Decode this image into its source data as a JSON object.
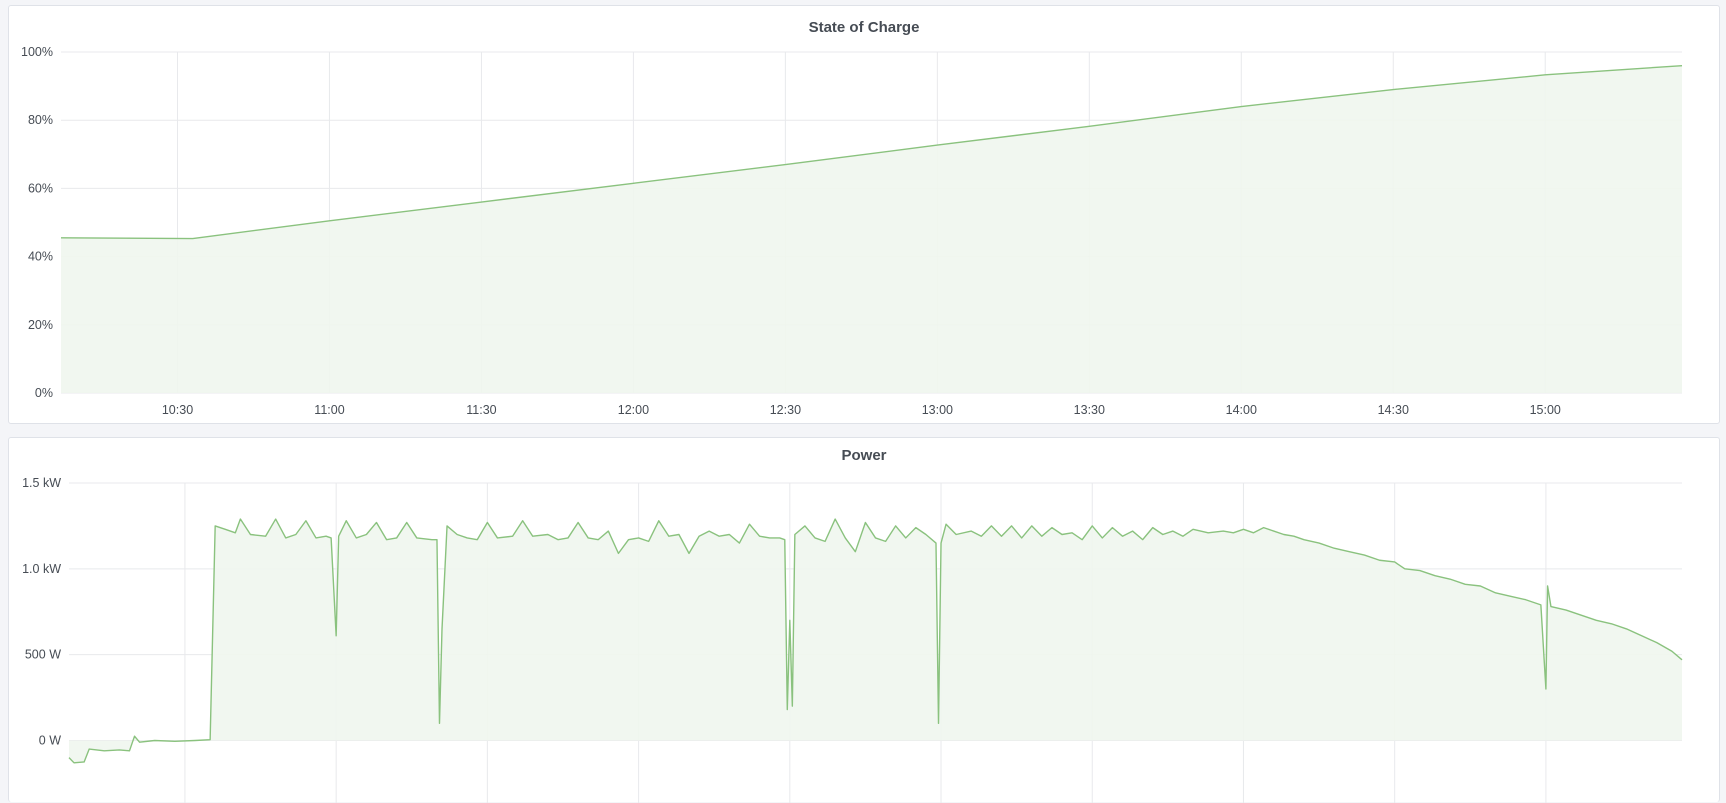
{
  "colors": {
    "line": "#8ac27e",
    "fill": "#f0f6ee",
    "grid": "#e8e9ec",
    "background": "#f4f5f8"
  },
  "chart_data": [
    {
      "type": "area",
      "title": "State of Charge",
      "xlabel": "",
      "ylabel": "",
      "xlim": [
        "10:07",
        "15:27"
      ],
      "ylim": [
        0,
        100
      ],
      "x_ticks": [
        "10:30",
        "11:00",
        "11:30",
        "12:00",
        "12:30",
        "13:00",
        "13:30",
        "14:00",
        "14:30",
        "15:00"
      ],
      "y_ticks": [
        {
          "value": 0,
          "label": "0%"
        },
        {
          "value": 20,
          "label": "20%"
        },
        {
          "value": 40,
          "label": "40%"
        },
        {
          "value": 60,
          "label": "60%"
        },
        {
          "value": 80,
          "label": "80%"
        },
        {
          "value": 100,
          "label": "100%"
        }
      ],
      "grid": true,
      "x": [
        "10:07",
        "10:33",
        "11:00",
        "11:30",
        "12:00",
        "12:30",
        "13:00",
        "13:30",
        "14:00",
        "14:30",
        "15:00",
        "15:27"
      ],
      "y": [
        45.5,
        45.3,
        50.5,
        56,
        61.5,
        67,
        72.7,
        78.2,
        84,
        89,
        93.3,
        96
      ]
    },
    {
      "type": "area",
      "title": "Power",
      "xlabel": "",
      "ylabel": "",
      "xlim": [
        "10:07",
        "15:27"
      ],
      "ylim": [
        -300,
        1500
      ],
      "x_grid": [
        "10:30",
        "11:00",
        "11:30",
        "12:00",
        "12:30",
        "13:00",
        "13:30",
        "14:00",
        "14:30",
        "15:00"
      ],
      "y_ticks": [
        {
          "value": 0,
          "label": "0 W"
        },
        {
          "value": 500,
          "label": "500 W"
        },
        {
          "value": 1000,
          "label": "1.0 kW"
        },
        {
          "value": 1500,
          "label": "1.5 kW"
        }
      ],
      "grid": true,
      "x": [
        "10:07",
        "10:08",
        "10:10",
        "10:11",
        "10:14",
        "10:17",
        "10:19",
        "10:20",
        "10:21",
        "10:24",
        "10:28",
        "10:32",
        "10:35",
        "10:36",
        "10:38",
        "10:40",
        "10:41",
        "10:43",
        "10:46",
        "10:48",
        "10:50",
        "10:52",
        "10:54",
        "10:56",
        "10:58",
        "10:59",
        "11:00",
        "11:00:30",
        "11:02",
        "11:04",
        "11:06",
        "11:08",
        "11:10",
        "11:12",
        "11:14",
        "11:16",
        "11:19",
        "11:20",
        "11:20:30",
        "11:21",
        "11:22",
        "11:24",
        "11:26",
        "11:28",
        "11:30",
        "11:32",
        "11:35",
        "11:37",
        "11:39",
        "11:42",
        "11:44",
        "11:46",
        "11:48",
        "11:50",
        "11:52",
        "11:54",
        "11:56",
        "11:58",
        "12:00",
        "12:02",
        "12:04",
        "12:06",
        "12:08",
        "12:10",
        "12:12",
        "12:14",
        "12:16",
        "12:18",
        "12:20",
        "12:22",
        "12:24",
        "12:26",
        "12:28",
        "12:29",
        "12:29:30",
        "12:30",
        "12:30:30",
        "12:31",
        "12:33",
        "12:35",
        "12:37",
        "12:39",
        "12:41",
        "12:43",
        "12:45",
        "12:47",
        "12:49",
        "12:51",
        "12:53",
        "12:55",
        "12:57",
        "12:59",
        "12:59:30",
        "13:00",
        "13:01",
        "13:03",
        "13:06",
        "13:08",
        "13:10",
        "13:12",
        "13:14",
        "13:16",
        "13:18",
        "13:20",
        "13:22",
        "13:24",
        "13:26",
        "13:28",
        "13:30",
        "13:32",
        "13:34",
        "13:36",
        "13:38",
        "13:40",
        "13:42",
        "13:44",
        "13:46",
        "13:48",
        "13:50",
        "13:53",
        "13:56",
        "13:58",
        "14:00",
        "14:02",
        "14:04",
        "14:06",
        "14:08",
        "14:10",
        "14:12",
        "14:15",
        "14:18",
        "14:21",
        "14:24",
        "14:27",
        "14:30",
        "14:32",
        "14:35",
        "14:38",
        "14:41",
        "14:44",
        "14:47",
        "14:50",
        "14:53",
        "14:56",
        "14:59",
        "15:00",
        "15:00:20",
        "15:01",
        "15:04",
        "15:07",
        "15:10",
        "15:13",
        "15:16",
        "15:19",
        "15:22",
        "15:25",
        "15:27"
      ],
      "y": [
        -100,
        -130,
        -125,
        -50,
        -60,
        -55,
        -60,
        25,
        -10,
        0,
        -5,
        0,
        5,
        1250,
        1230,
        1210,
        1290,
        1200,
        1190,
        1290,
        1180,
        1200,
        1280,
        1180,
        1190,
        1180,
        610,
        1190,
        1280,
        1180,
        1200,
        1270,
        1170,
        1180,
        1270,
        1180,
        1170,
        1170,
        100,
        650,
        1250,
        1200,
        1180,
        1170,
        1270,
        1180,
        1190,
        1280,
        1190,
        1200,
        1170,
        1180,
        1270,
        1180,
        1170,
        1220,
        1090,
        1170,
        1180,
        1160,
        1280,
        1190,
        1200,
        1090,
        1190,
        1220,
        1190,
        1200,
        1150,
        1260,
        1190,
        1180,
        1180,
        1170,
        180,
        700,
        200,
        1200,
        1250,
        1180,
        1160,
        1290,
        1180,
        1100,
        1270,
        1180,
        1160,
        1250,
        1180,
        1240,
        1200,
        1150,
        100,
        1150,
        1260,
        1200,
        1220,
        1190,
        1250,
        1190,
        1250,
        1180,
        1250,
        1190,
        1240,
        1200,
        1210,
        1170,
        1250,
        1180,
        1240,
        1190,
        1220,
        1170,
        1240,
        1200,
        1220,
        1190,
        1230,
        1210,
        1220,
        1210,
        1230,
        1210,
        1240,
        1220,
        1200,
        1190,
        1170,
        1150,
        1120,
        1100,
        1080,
        1050,
        1040,
        1000,
        990,
        960,
        940,
        910,
        900,
        860,
        840,
        820,
        790,
        300,
        900,
        780,
        760,
        730,
        700,
        680,
        650,
        610,
        570,
        520,
        470
      ]
    }
  ]
}
